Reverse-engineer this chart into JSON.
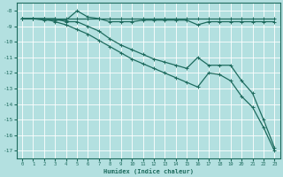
{
  "xlabel": "Humidex (Indice chaleur)",
  "bg_color": "#b3e0e0",
  "grid_color": "#ffffff",
  "line_color": "#1e6b5e",
  "xlim": [
    -0.5,
    23.5
  ],
  "ylim": [
    -17.5,
    -7.5
  ],
  "xticks": [
    0,
    1,
    2,
    3,
    4,
    5,
    6,
    7,
    8,
    9,
    10,
    11,
    12,
    13,
    14,
    15,
    16,
    17,
    18,
    19,
    20,
    21,
    22,
    23
  ],
  "yticks": [
    -8,
    -9,
    -10,
    -11,
    -12,
    -13,
    -14,
    -15,
    -16,
    -17
  ],
  "series": [
    {
      "x": [
        0,
        1,
        2,
        3,
        4,
        5,
        6,
        7,
        8,
        9,
        10,
        11,
        12,
        13,
        14,
        15,
        16,
        17,
        18,
        19,
        20,
        21,
        22,
        23
      ],
      "y": [
        -8.5,
        -8.5,
        -8.5,
        -8.5,
        -8.5,
        -8.5,
        -8.5,
        -8.5,
        -8.5,
        -8.5,
        -8.5,
        -8.5,
        -8.5,
        -8.5,
        -8.5,
        -8.5,
        -8.5,
        -8.5,
        -8.5,
        -8.5,
        -8.5,
        -8.5,
        -8.5,
        -8.5
      ]
    },
    {
      "x": [
        0,
        1,
        2,
        3,
        4,
        5,
        6,
        7,
        8,
        9,
        10,
        11,
        12,
        13,
        14,
        15,
        16,
        17,
        18,
        19,
        20,
        21,
        22,
        23
      ],
      "y": [
        -8.5,
        -8.5,
        -8.6,
        -8.6,
        -8.6,
        -8.0,
        -8.4,
        -8.5,
        -8.7,
        -8.7,
        -8.7,
        -8.6,
        -8.6,
        -8.6,
        -8.6,
        -8.6,
        -8.9,
        -8.7,
        -8.7,
        -8.7,
        -8.7,
        -8.7,
        -8.7,
        -8.7
      ]
    },
    {
      "x": [
        0,
        1,
        2,
        3,
        4,
        5,
        6,
        7,
        8,
        9,
        10,
        11,
        12,
        13,
        14,
        15,
        16,
        17,
        18,
        19,
        20,
        21,
        22,
        23
      ],
      "y": [
        -8.5,
        -8.5,
        -8.5,
        -8.5,
        -8.7,
        -8.7,
        -9.0,
        -9.3,
        -9.8,
        -10.2,
        -10.5,
        -10.8,
        -11.1,
        -11.3,
        -11.5,
        -11.7,
        -11.0,
        -11.5,
        -11.5,
        -11.5,
        -12.5,
        -13.3,
        -15.0,
        -16.8
      ]
    },
    {
      "x": [
        0,
        1,
        2,
        3,
        4,
        5,
        6,
        7,
        8,
        9,
        10,
        11,
        12,
        13,
        14,
        15,
        16,
        17,
        18,
        19,
        20,
        21,
        22,
        23
      ],
      "y": [
        -8.5,
        -8.5,
        -8.5,
        -8.7,
        -8.9,
        -9.2,
        -9.5,
        -9.9,
        -10.3,
        -10.7,
        -11.1,
        -11.4,
        -11.7,
        -12.0,
        -12.3,
        -12.6,
        -12.9,
        -12.0,
        -12.1,
        -12.5,
        -13.5,
        -14.2,
        -15.5,
        -17.0
      ]
    }
  ]
}
